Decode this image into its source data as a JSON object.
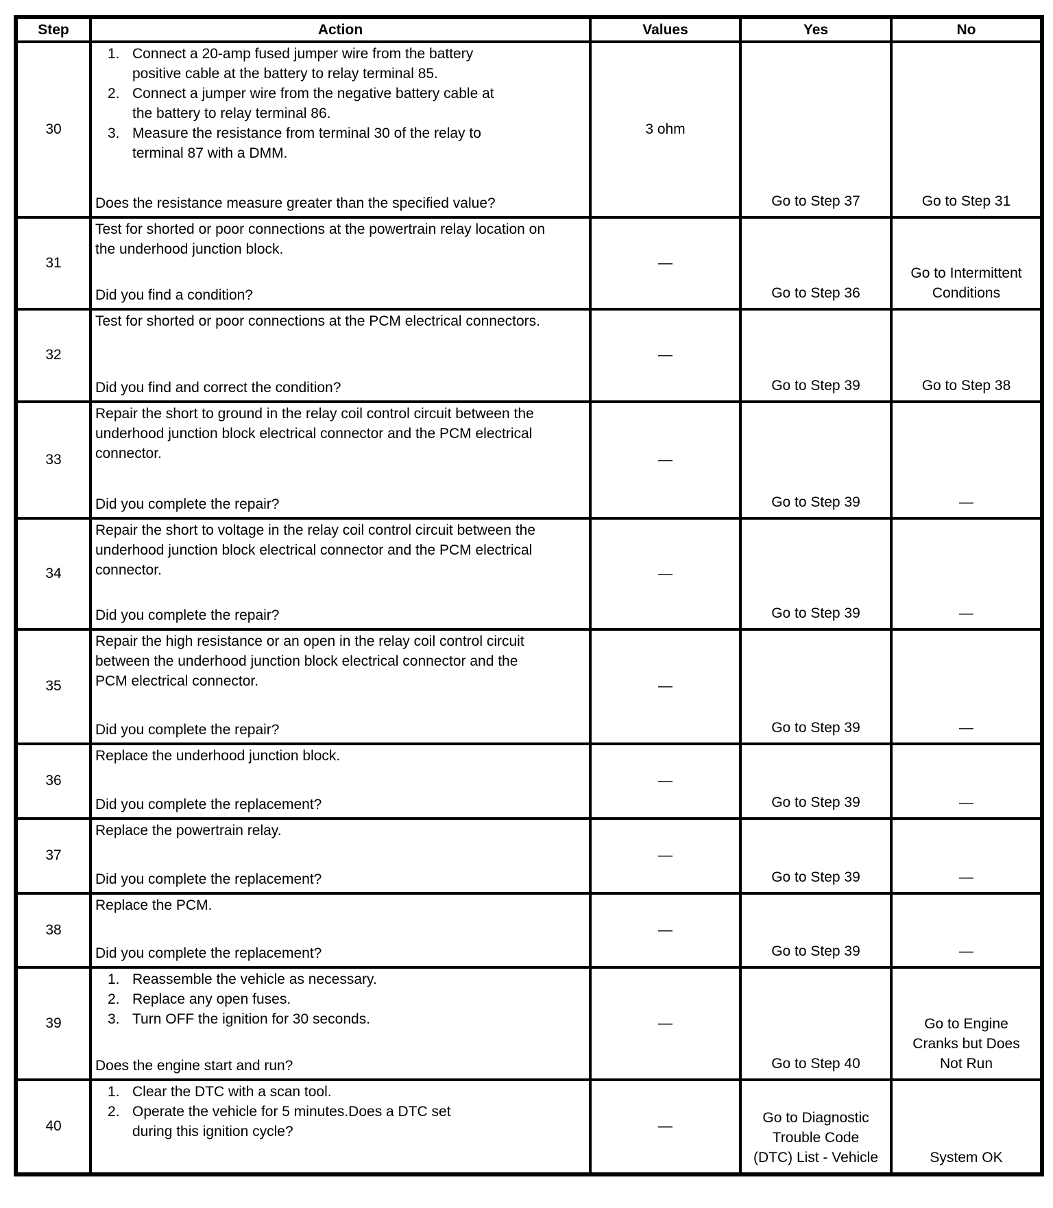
{
  "table": {
    "headers": {
      "step": "Step",
      "action": "Action",
      "values": "Values",
      "yes": "Yes",
      "no": "No"
    },
    "rows": [
      {
        "step": "30",
        "action_items": [
          "Connect a 20-amp fused jumper wire from the battery positive cable at the battery to relay terminal 85.",
          "Connect a jumper wire from the negative battery cable at the battery to relay terminal 86.",
          "Measure the resistance from terminal 30 of the relay to terminal 87 with a DMM."
        ],
        "action_text": "",
        "question": "Does the resistance measure greater than the specified value?",
        "values": "3 ohm",
        "yes": "Go to Step 37",
        "no": "Go to Step 31"
      },
      {
        "step": "31",
        "action_items": [],
        "action_text": "Test for shorted or poor connections at the powertrain relay location on the underhood junction block.",
        "question": "Did you find a condition?",
        "values": "—",
        "yes": "Go to Step 36",
        "no": "Go to Intermittent Conditions"
      },
      {
        "step": "32",
        "action_items": [],
        "action_text": "Test for shorted or poor connections at the PCM electrical connectors.",
        "question": "Did you find and correct the condition?",
        "values": "—",
        "yes": "Go to Step 39",
        "no": "Go to Step 38"
      },
      {
        "step": "33",
        "action_items": [],
        "action_text": "Repair the short to ground in the relay coil control circuit between the underhood junction block electrical connector and the PCM electrical connector.",
        "question": "Did you complete the repair?",
        "values": "—",
        "yes": "Go to Step 39",
        "no": "—"
      },
      {
        "step": "34",
        "action_items": [],
        "action_text": "Repair the short to voltage in the relay coil control circuit between the underhood junction block electrical connector and the PCM electrical connector.",
        "question": "Did you complete the repair?",
        "values": "—",
        "yes": "Go to Step 39",
        "no": "—"
      },
      {
        "step": "35",
        "action_items": [],
        "action_text": "Repair the high resistance or an open in the relay coil control circuit between the underhood junction block electrical connector and the PCM electrical connector.",
        "question": "Did you complete the repair?",
        "values": "—",
        "yes": "Go to Step 39",
        "no": "—"
      },
      {
        "step": "36",
        "action_items": [],
        "action_text": "Replace the underhood junction block.",
        "question": "Did you complete the replacement?",
        "values": "—",
        "yes": "Go to Step 39",
        "no": "—"
      },
      {
        "step": "37",
        "action_items": [],
        "action_text": "Replace the powertrain relay.",
        "question": "Did you complete the replacement?",
        "values": "—",
        "yes": "Go to Step 39",
        "no": "—"
      },
      {
        "step": "38",
        "action_items": [],
        "action_text": "Replace the PCM.",
        "question": "Did you complete the replacement?",
        "values": "—",
        "yes": "Go to Step 39",
        "no": "—"
      },
      {
        "step": "39",
        "action_items": [
          "Reassemble the vehicle as necessary.",
          "Replace any open fuses.",
          "Turn OFF the ignition for 30 seconds."
        ],
        "action_text": "",
        "question": "Does the engine start and run?",
        "values": "—",
        "yes": "Go to Step 40",
        "no": "Go to Engine Cranks but Does Not Run"
      },
      {
        "step": "40",
        "action_items": [
          "Clear the DTC with a scan tool.",
          "Operate the vehicle for 5 minutes.Does a DTC set during this ignition cycle?"
        ],
        "action_text": "",
        "question": "",
        "values": "—",
        "yes": "Go to Diagnostic Trouble Code (DTC) List - Vehicle",
        "no": "System OK"
      }
    ]
  }
}
